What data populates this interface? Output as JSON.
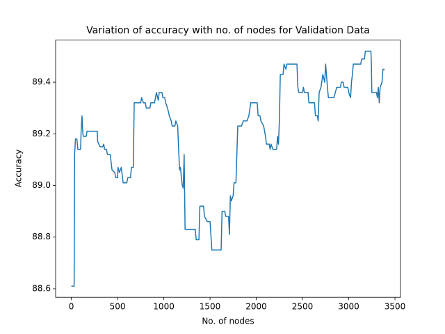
{
  "chart_data": {
    "type": "line",
    "title": "Variation of accuracy with no. of nodes for Validation Data",
    "x_label": "No. of nodes",
    "y_label": "Accuracy",
    "color": "#1f77b4",
    "x": [
      0,
      30,
      35,
      45,
      60,
      70,
      100,
      105,
      115,
      125,
      130,
      160,
      170,
      280,
      285,
      310,
      340,
      350,
      360,
      380,
      390,
      420,
      430,
      440,
      470,
      480,
      500,
      505,
      520,
      540,
      560,
      600,
      610,
      640,
      650,
      670,
      680,
      750,
      760,
      780,
      800,
      810,
      850,
      860,
      900,
      920,
      940,
      950,
      980,
      990,
      1010,
      1020,
      1040,
      1060,
      1080,
      1090,
      1120,
      1130,
      1150,
      1170,
      1180,
      1190,
      1200,
      1210,
      1220,
      1230,
      1340,
      1350,
      1380,
      1390,
      1430,
      1440,
      1470,
      1500,
      1520,
      1620,
      1630,
      1660,
      1670,
      1700,
      1710,
      1720,
      1730,
      1750,
      1760,
      1780,
      1800,
      1840,
      1860,
      1900,
      1920,
      1940,
      2010,
      2020,
      2040,
      2050,
      2080,
      2100,
      2110,
      2140,
      2150,
      2160,
      2180,
      2220,
      2230,
      2240,
      2250,
      2260,
      2290,
      2300,
      2320,
      2330,
      2440,
      2450,
      2460,
      2500,
      2510,
      2520,
      2560,
      2570,
      2630,
      2640,
      2660,
      2670,
      2680,
      2700,
      2720,
      2740,
      2750,
      2770,
      2780,
      2840,
      2870,
      2910,
      2920,
      2940,
      2950,
      2990,
      3000,
      3020,
      3030,
      3040,
      3050,
      3130,
      3140,
      3170,
      3180,
      3240,
      3245,
      3250,
      3300,
      3310,
      3320,
      3330,
      3340,
      3360,
      3370,
      3390
    ],
    "values": [
      88.61,
      88.61,
      89.12,
      89.18,
      89.18,
      89.14,
      89.14,
      89.2,
      89.27,
      89.2,
      89.19,
      89.19,
      89.21,
      89.21,
      89.17,
      89.15,
      89.15,
      89.16,
      89.14,
      89.14,
      89.12,
      89.12,
      89.09,
      89.06,
      89.05,
      89.03,
      89.03,
      89.07,
      89.05,
      89.07,
      89.01,
      89.01,
      89.03,
      89.03,
      89.07,
      89.07,
      89.32,
      89.32,
      89.34,
      89.32,
      89.32,
      89.3,
      89.3,
      89.32,
      89.32,
      89.36,
      89.33,
      89.36,
      89.36,
      89.34,
      89.34,
      89.32,
      89.3,
      89.27,
      89.25,
      89.23,
      89.23,
      89.25,
      89.23,
      89.06,
      89.07,
      89.03,
      89.0,
      88.99,
      89.12,
      88.83,
      88.83,
      88.79,
      88.79,
      88.92,
      88.92,
      88.88,
      88.86,
      88.86,
      88.75,
      88.75,
      88.9,
      88.9,
      88.88,
      88.88,
      88.81,
      88.96,
      88.94,
      88.96,
      89.01,
      89.01,
      89.23,
      89.23,
      89.25,
      89.25,
      89.27,
      89.32,
      89.32,
      89.27,
      89.27,
      89.25,
      89.23,
      89.19,
      89.16,
      89.16,
      89.14,
      89.16,
      89.14,
      89.14,
      89.19,
      89.16,
      89.25,
      89.43,
      89.43,
      89.47,
      89.45,
      89.47,
      89.47,
      89.38,
      89.36,
      89.36,
      89.38,
      89.36,
      89.36,
      89.32,
      89.32,
      89.27,
      89.27,
      89.25,
      89.36,
      89.38,
      89.43,
      89.4,
      89.47,
      89.38,
      89.34,
      89.34,
      89.38,
      89.38,
      89.4,
      89.4,
      89.38,
      89.38,
      89.36,
      89.34,
      89.4,
      89.43,
      89.47,
      89.47,
      89.49,
      89.49,
      89.52,
      89.52,
      89.47,
      89.36,
      89.36,
      89.34,
      89.38,
      89.32,
      89.38,
      89.4,
      89.45,
      89.45
    ],
    "xlim": [
      -170,
      3560
    ],
    "ylim": [
      88.567,
      89.563
    ],
    "xticks": [
      0,
      500,
      1000,
      1500,
      2000,
      2500,
      3000,
      3500
    ],
    "yticks": [
      88.6,
      88.8,
      {
        "value": 89,
        "label": "89.0"
      },
      89.2,
      89.4
    ]
  }
}
